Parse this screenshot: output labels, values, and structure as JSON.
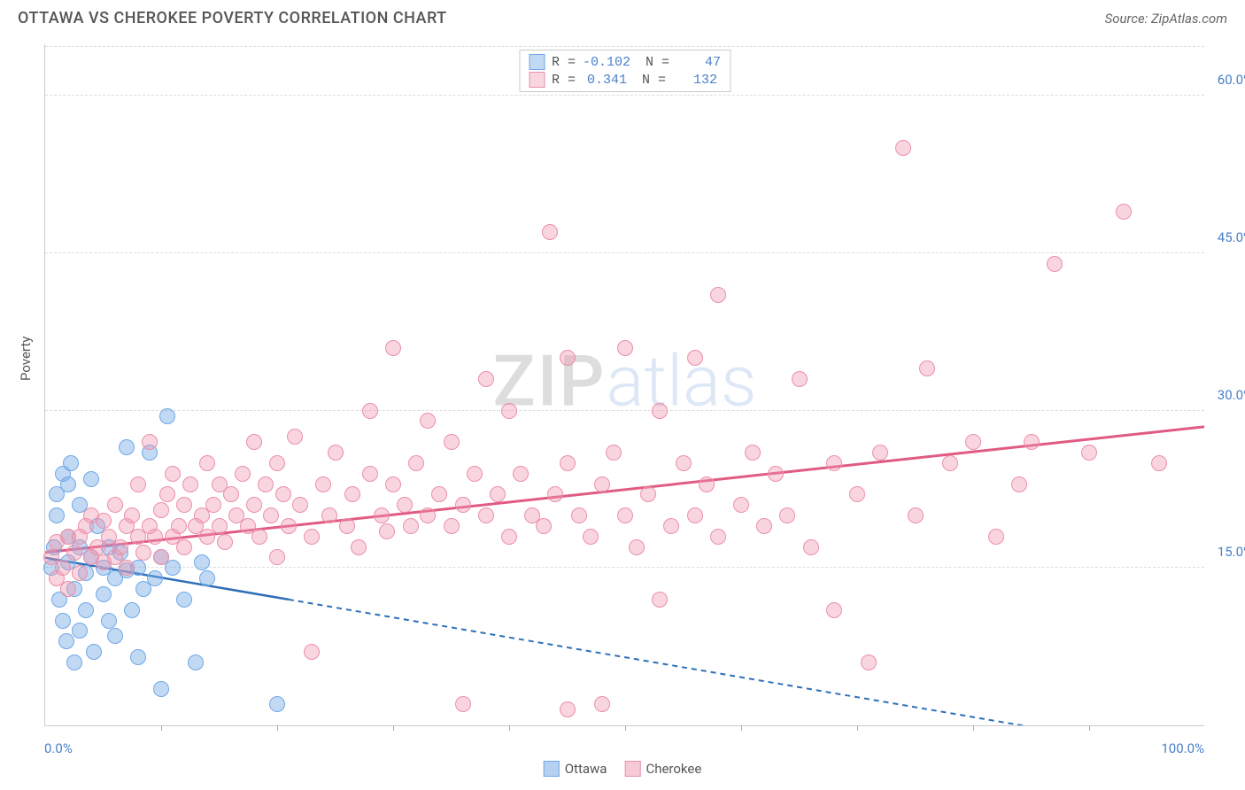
{
  "title": "OTTAWA VS CHEROKEE POVERTY CORRELATION CHART",
  "source": "Source: ZipAtlas.com",
  "yAxisTitle": "Poverty",
  "watermark": {
    "zip": "ZIP",
    "atlas": "atlas"
  },
  "chart": {
    "type": "scatter",
    "xlim": [
      0,
      100
    ],
    "ylim": [
      0,
      65
    ],
    "xTickStep": 10,
    "yTicks": [
      15,
      30,
      45,
      60
    ],
    "yTickLabels": [
      "15.0%",
      "30.0%",
      "45.0%",
      "60.0%"
    ],
    "xMinLabel": "0.0%",
    "xMaxLabel": "100.0%",
    "background_color": "#ffffff",
    "grid_color": "#dddddd",
    "axis_color": "#cccccc",
    "label_color": "#4a7fc9",
    "label_fontsize": 15,
    "title_fontsize": 18,
    "title_color": "#555555",
    "point_radius": 9,
    "point_opacity": 0.55,
    "series": [
      {
        "name": "Ottawa",
        "color_fill": "rgba(120,170,230,0.45)",
        "color_stroke": "#6fa8e8",
        "trend": {
          "y_at_x0": 16.0,
          "y_at_x100": -3.0,
          "solid_until_x": 21,
          "dash": "6,5",
          "width": 2.5,
          "color": "#2f6fb8"
        },
        "R": "-0.102",
        "N": "47",
        "points": [
          [
            0.5,
            15
          ],
          [
            0.8,
            17
          ],
          [
            1,
            20
          ],
          [
            1,
            22
          ],
          [
            1.2,
            12
          ],
          [
            1.5,
            24
          ],
          [
            1.5,
            10
          ],
          [
            1.8,
            8
          ],
          [
            2,
            15.5
          ],
          [
            2,
            18
          ],
          [
            2,
            23
          ],
          [
            2.2,
            25
          ],
          [
            2.5,
            6
          ],
          [
            2.5,
            13
          ],
          [
            3,
            17
          ],
          [
            3,
            9
          ],
          [
            3,
            21
          ],
          [
            3.5,
            11
          ],
          [
            3.5,
            14.5
          ],
          [
            4,
            16
          ],
          [
            4,
            23.5
          ],
          [
            4.2,
            7
          ],
          [
            4.5,
            19
          ],
          [
            5,
            12.5
          ],
          [
            5,
            15
          ],
          [
            5.5,
            10
          ],
          [
            5.5,
            17
          ],
          [
            6,
            14
          ],
          [
            6,
            8.5
          ],
          [
            6.5,
            16.5
          ],
          [
            7,
            14.8
          ],
          [
            7,
            26.5
          ],
          [
            7.5,
            11
          ],
          [
            8,
            15
          ],
          [
            8,
            6.5
          ],
          [
            8.5,
            13
          ],
          [
            9,
            26
          ],
          [
            9.5,
            14
          ],
          [
            10,
            3.5
          ],
          [
            10,
            16
          ],
          [
            10.5,
            29.5
          ],
          [
            11,
            15
          ],
          [
            12,
            12
          ],
          [
            13,
            6
          ],
          [
            13.5,
            15.5
          ],
          [
            14,
            14
          ],
          [
            20,
            2
          ]
        ]
      },
      {
        "name": "Cherokee",
        "color_fill": "rgba(240,150,175,0.40)",
        "color_stroke": "#ec8fa8",
        "trend": {
          "y_at_x0": 16.5,
          "y_at_x100": 28.5,
          "solid_until_x": 100,
          "dash": "",
          "width": 3,
          "color": "#e05a82"
        },
        "R": "0.341",
        "N": "132",
        "points": [
          [
            0.5,
            16
          ],
          [
            1,
            14
          ],
          [
            1,
            17.5
          ],
          [
            1.5,
            15
          ],
          [
            2,
            18
          ],
          [
            2,
            13
          ],
          [
            2.5,
            16.5
          ],
          [
            3,
            18
          ],
          [
            3,
            14.5
          ],
          [
            3.5,
            19
          ],
          [
            4,
            16
          ],
          [
            4,
            20
          ],
          [
            4.5,
            17
          ],
          [
            5,
            15.5
          ],
          [
            5,
            19.5
          ],
          [
            5.5,
            18
          ],
          [
            6,
            16
          ],
          [
            6,
            21
          ],
          [
            6.5,
            17
          ],
          [
            7,
            19
          ],
          [
            7,
            15
          ],
          [
            7.5,
            20
          ],
          [
            8,
            18
          ],
          [
            8,
            23
          ],
          [
            8.5,
            16.5
          ],
          [
            9,
            19
          ],
          [
            9,
            27
          ],
          [
            9.5,
            18
          ],
          [
            10,
            20.5
          ],
          [
            10,
            16
          ],
          [
            10.5,
            22
          ],
          [
            11,
            18
          ],
          [
            11,
            24
          ],
          [
            11.5,
            19
          ],
          [
            12,
            21
          ],
          [
            12,
            17
          ],
          [
            12.5,
            23
          ],
          [
            13,
            19
          ],
          [
            13.5,
            20
          ],
          [
            14,
            18
          ],
          [
            14,
            25
          ],
          [
            14.5,
            21
          ],
          [
            15,
            19
          ],
          [
            15,
            23
          ],
          [
            15.5,
            17.5
          ],
          [
            16,
            22
          ],
          [
            16.5,
            20
          ],
          [
            17,
            24
          ],
          [
            17.5,
            19
          ],
          [
            18,
            21
          ],
          [
            18,
            27
          ],
          [
            18.5,
            18
          ],
          [
            19,
            23
          ],
          [
            19.5,
            20
          ],
          [
            20,
            25
          ],
          [
            20,
            16
          ],
          [
            20.5,
            22
          ],
          [
            21,
            19
          ],
          [
            21.5,
            27.5
          ],
          [
            22,
            21
          ],
          [
            23,
            18
          ],
          [
            23,
            7
          ],
          [
            24,
            23
          ],
          [
            24.5,
            20
          ],
          [
            25,
            26
          ],
          [
            26,
            19
          ],
          [
            26.5,
            22
          ],
          [
            27,
            17
          ],
          [
            28,
            24
          ],
          [
            28,
            30
          ],
          [
            29,
            20
          ],
          [
            29.5,
            18.5
          ],
          [
            30,
            23
          ],
          [
            30,
            36
          ],
          [
            31,
            21
          ],
          [
            31.5,
            19
          ],
          [
            32,
            25
          ],
          [
            33,
            20
          ],
          [
            33,
            29
          ],
          [
            34,
            22
          ],
          [
            35,
            19
          ],
          [
            35,
            27
          ],
          [
            36,
            2
          ],
          [
            36,
            21
          ],
          [
            37,
            24
          ],
          [
            38,
            20
          ],
          [
            38,
            33
          ],
          [
            39,
            22
          ],
          [
            40,
            18
          ],
          [
            40,
            30
          ],
          [
            41,
            24
          ],
          [
            42,
            20
          ],
          [
            43,
            19
          ],
          [
            43.5,
            47
          ],
          [
            44,
            22
          ],
          [
            45,
            1.5
          ],
          [
            45,
            25
          ],
          [
            45,
            35
          ],
          [
            46,
            20
          ],
          [
            47,
            18
          ],
          [
            48,
            2
          ],
          [
            48,
            23
          ],
          [
            49,
            26
          ],
          [
            50,
            20
          ],
          [
            50,
            36
          ],
          [
            51,
            17
          ],
          [
            52,
            22
          ],
          [
            53,
            30
          ],
          [
            53,
            12
          ],
          [
            54,
            19
          ],
          [
            55,
            25
          ],
          [
            56,
            20
          ],
          [
            56,
            35
          ],
          [
            57,
            23
          ],
          [
            58,
            18
          ],
          [
            58,
            41
          ],
          [
            60,
            21
          ],
          [
            61,
            26
          ],
          [
            62,
            19
          ],
          [
            63,
            24
          ],
          [
            64,
            20
          ],
          [
            65,
            33
          ],
          [
            66,
            17
          ],
          [
            68,
            25
          ],
          [
            68,
            11
          ],
          [
            70,
            22
          ],
          [
            71,
            6
          ],
          [
            72,
            26
          ],
          [
            74,
            55
          ],
          [
            75,
            20
          ],
          [
            76,
            34
          ],
          [
            78,
            25
          ],
          [
            80,
            27
          ],
          [
            82,
            18
          ],
          [
            84,
            23
          ],
          [
            85,
            27
          ],
          [
            87,
            44
          ],
          [
            90,
            26
          ],
          [
            93,
            49
          ],
          [
            96,
            25
          ]
        ]
      }
    ],
    "legendBottom": [
      {
        "label": "Ottawa",
        "fill": "rgba(120,170,230,0.55)",
        "stroke": "#6fa8e8"
      },
      {
        "label": "Cherokee",
        "fill": "rgba(240,150,175,0.50)",
        "stroke": "#ec8fa8"
      }
    ]
  }
}
